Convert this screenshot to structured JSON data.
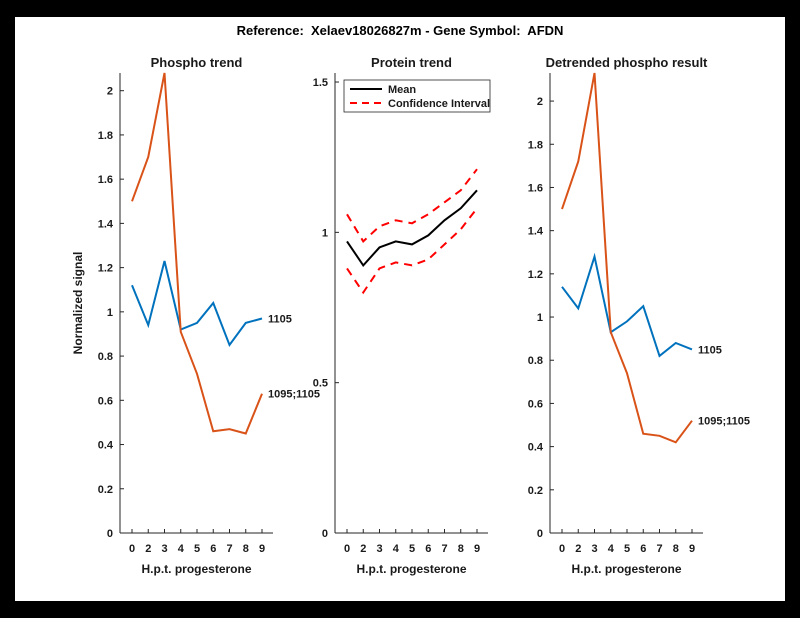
{
  "figure": {
    "title": "Reference:  Xelaev18026827m - Gene Symbol:  AFDN",
    "frame_color": "#000000",
    "canvas_color": "#ffffff",
    "text_color": "#1a1a1a",
    "axis_color": "#262626"
  },
  "chart_data": [
    {
      "type": "line",
      "title": "Phospho trend",
      "xlabel": "H.p.t. progesterone",
      "ylabel": "Normalized signal",
      "x": [
        0,
        2,
        3,
        4,
        5,
        6,
        7,
        8,
        9
      ],
      "x_tick_labels": [
        "0",
        "2",
        "3",
        "4",
        "5",
        "6",
        "7",
        "8",
        "9"
      ],
      "x_spacing": "uniform",
      "ylim": [
        0,
        2.08
      ],
      "yticks": [
        0,
        0.2,
        0.4,
        0.6,
        0.8,
        1,
        1.2,
        1.4,
        1.6,
        1.8,
        2
      ],
      "ytick_labels": [
        "0",
        "0.2",
        "0.4",
        "0.6",
        "0.8",
        "1",
        "1.2",
        "1.4",
        "1.6",
        "1.8",
        "2"
      ],
      "grid": false,
      "legend": null,
      "series": [
        {
          "name": "1105",
          "color": "#0072BD",
          "dash": false,
          "end_label": "1105",
          "values": [
            1.12,
            0.94,
            1.23,
            0.92,
            0.95,
            1.04,
            0.85,
            0.95,
            0.97
          ]
        },
        {
          "name": "1095;1105",
          "color": "#D95319",
          "dash": false,
          "end_label": "1095;1105",
          "values": [
            1.5,
            1.7,
            2.08,
            0.91,
            0.72,
            0.46,
            0.47,
            0.45,
            0.63
          ]
        }
      ]
    },
    {
      "type": "line",
      "title": "Protein trend",
      "xlabel": "H.p.t. progesterone",
      "ylabel": "",
      "x": [
        0,
        2,
        3,
        4,
        5,
        6,
        7,
        8,
        9
      ],
      "x_tick_labels": [
        "0",
        "2",
        "3",
        "4",
        "5",
        "6",
        "7",
        "8",
        "9"
      ],
      "x_spacing": "uniform",
      "ylim": [
        0,
        1.53
      ],
      "yticks": [
        0,
        0.5,
        1,
        1.5
      ],
      "ytick_labels": [
        "0",
        "0.5",
        "1",
        "1.5"
      ],
      "grid": false,
      "legend": {
        "position": "northwest",
        "entries": [
          {
            "label": "Mean",
            "color": "#000000",
            "dash": false
          },
          {
            "label": "Confidence Interval",
            "color": "#FF0000",
            "dash": true
          }
        ]
      },
      "series": [
        {
          "name": "Mean",
          "color": "#000000",
          "dash": false,
          "end_label": null,
          "values": [
            0.97,
            0.89,
            0.95,
            0.97,
            0.96,
            0.99,
            1.04,
            1.08,
            1.14
          ]
        },
        {
          "name": "Confidence Interval upper",
          "color": "#FF0000",
          "dash": true,
          "end_label": null,
          "values": [
            1.06,
            0.97,
            1.02,
            1.04,
            1.03,
            1.06,
            1.1,
            1.14,
            1.21
          ]
        },
        {
          "name": "Confidence Interval lower",
          "color": "#FF0000",
          "dash": true,
          "end_label": null,
          "values": [
            0.88,
            0.8,
            0.88,
            0.9,
            0.89,
            0.91,
            0.96,
            1.01,
            1.08
          ]
        }
      ]
    },
    {
      "type": "line",
      "title": "Detrended phospho result",
      "xlabel": "H.p.t. progesterone",
      "ylabel": "",
      "x": [
        0,
        2,
        3,
        4,
        5,
        6,
        7,
        8,
        9
      ],
      "x_tick_labels": [
        "0",
        "2",
        "3",
        "4",
        "5",
        "6",
        "7",
        "8",
        "9"
      ],
      "x_spacing": "uniform",
      "ylim": [
        0,
        2.13
      ],
      "yticks": [
        0,
        0.2,
        0.4,
        0.6,
        0.8,
        1,
        1.2,
        1.4,
        1.6,
        1.8,
        2
      ],
      "ytick_labels": [
        "0",
        "0.2",
        "0.4",
        "0.6",
        "0.8",
        "1",
        "1.2",
        "1.4",
        "1.6",
        "1.8",
        "2"
      ],
      "grid": false,
      "legend": null,
      "series": [
        {
          "name": "1105",
          "color": "#0072BD",
          "dash": false,
          "end_label": "1105",
          "values": [
            1.14,
            1.04,
            1.28,
            0.93,
            0.98,
            1.05,
            0.82,
            0.88,
            0.85
          ]
        },
        {
          "name": "1095;1105",
          "color": "#D95319",
          "dash": false,
          "end_label": "1095;1105",
          "values": [
            1.5,
            1.72,
            2.13,
            0.93,
            0.74,
            0.46,
            0.45,
            0.42,
            0.52
          ]
        }
      ]
    }
  ]
}
